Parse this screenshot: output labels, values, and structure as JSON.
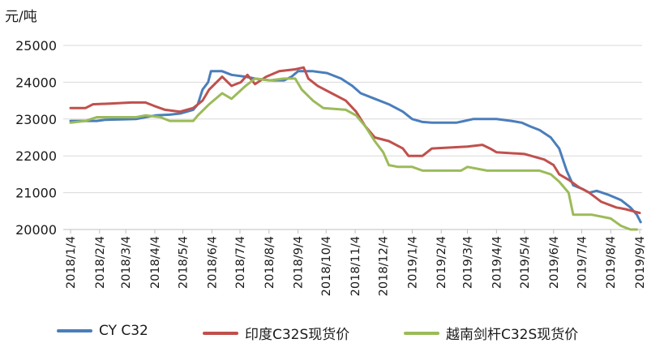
{
  "unit_label": "元/吨",
  "chart_data": {
    "type": "line",
    "ylabel": "元/吨",
    "ylim": [
      20000,
      25000
    ],
    "y_ticks": [
      "25000",
      "24000",
      "23000",
      "22000",
      "21000",
      "20000"
    ],
    "x_ticks": [
      "2018/1/4",
      "2018/2/4",
      "2018/3/4",
      "2018/4/4",
      "2018/5/4",
      "2018/6/4",
      "2018/7/4",
      "2018/8/4",
      "2018/9/4",
      "2018/10/4",
      "2018/11/4",
      "2018/12/4",
      "2019/1/4",
      "2019/2/4",
      "2019/3/4",
      "2019/4/4",
      "2019/5/4",
      "2019/6/4",
      "2019/7/4",
      "2019/8/4",
      "2019/9/4"
    ],
    "grid": "horizontal",
    "legend_position": "bottom",
    "series": [
      {
        "name": "CY C32",
        "color": "#4a7ebb",
        "points": [
          [
            "2018/1/4",
            22950
          ],
          [
            "2018/2/1",
            22950
          ],
          [
            "2018/2/10",
            22980
          ],
          [
            "2018/3/15",
            23000
          ],
          [
            "2018/3/25",
            23050
          ],
          [
            "2018/4/5",
            23100
          ],
          [
            "2018/4/20",
            23120
          ],
          [
            "2018/5/1",
            23150
          ],
          [
            "2018/5/15",
            23250
          ],
          [
            "2018/5/20",
            23400
          ],
          [
            "2018/5/25",
            23800
          ],
          [
            "2018/5/31",
            24000
          ],
          [
            "2018/6/3",
            24300
          ],
          [
            "2018/6/15",
            24300
          ],
          [
            "2018/6/25",
            24200
          ],
          [
            "2018/7/10",
            24150
          ],
          [
            "2018/7/20",
            24100
          ],
          [
            "2018/8/5",
            24050
          ],
          [
            "2018/8/20",
            24050
          ],
          [
            "2018/8/28",
            24150
          ],
          [
            "2018/9/4",
            24300
          ],
          [
            "2018/9/20",
            24300
          ],
          [
            "2018/10/5",
            24250
          ],
          [
            "2018/10/20",
            24100
          ],
          [
            "2018/11/1",
            23900
          ],
          [
            "2018/11/10",
            23700
          ],
          [
            "2018/11/25",
            23550
          ],
          [
            "2018/12/10",
            23400
          ],
          [
            "2018/12/25",
            23200
          ],
          [
            "2019/1/4",
            23000
          ],
          [
            "2019/1/15",
            22920
          ],
          [
            "2019/1/25",
            22900
          ],
          [
            "2019/2/20",
            22900
          ],
          [
            "2019/3/1",
            22950
          ],
          [
            "2019/3/10",
            23000
          ],
          [
            "2019/3/20",
            23000
          ],
          [
            "2019/4/4",
            23000
          ],
          [
            "2019/4/20",
            22950
          ],
          [
            "2019/5/1",
            22900
          ],
          [
            "2019/5/10",
            22800
          ],
          [
            "2019/5/20",
            22700
          ],
          [
            "2019/6/1",
            22500
          ],
          [
            "2019/6/10",
            22200
          ],
          [
            "2019/6/18",
            21600
          ],
          [
            "2019/6/25",
            21200
          ],
          [
            "2019/7/5",
            21100
          ],
          [
            "2019/7/12",
            21000
          ],
          [
            "2019/7/20",
            21050
          ],
          [
            "2019/8/1",
            20950
          ],
          [
            "2019/8/15",
            20800
          ],
          [
            "2019/8/25",
            20600
          ],
          [
            "2019/9/1",
            20400
          ],
          [
            "2019/9/5",
            20200
          ]
        ]
      },
      {
        "name": "印度C32S现货价",
        "color": "#c0504d",
        "points": [
          [
            "2018/1/4",
            23300
          ],
          [
            "2018/1/20",
            23300
          ],
          [
            "2018/1/28",
            23400
          ],
          [
            "2018/2/15",
            23420
          ],
          [
            "2018/3/10",
            23450
          ],
          [
            "2018/3/25",
            23450
          ],
          [
            "2018/4/4",
            23350
          ],
          [
            "2018/4/15",
            23250
          ],
          [
            "2018/5/1",
            23200
          ],
          [
            "2018/5/15",
            23300
          ],
          [
            "2018/5/25",
            23500
          ],
          [
            "2018/6/1",
            23800
          ],
          [
            "2018/6/15",
            24150
          ],
          [
            "2018/6/25",
            23900
          ],
          [
            "2018/7/5",
            24000
          ],
          [
            "2018/7/12",
            24200
          ],
          [
            "2018/7/20",
            23950
          ],
          [
            "2018/8/1",
            24150
          ],
          [
            "2018/8/15",
            24300
          ],
          [
            "2018/9/1",
            24350
          ],
          [
            "2018/9/10",
            24400
          ],
          [
            "2018/9/15",
            24100
          ],
          [
            "2018/9/25",
            23900
          ],
          [
            "2018/10/10",
            23700
          ],
          [
            "2018/10/25",
            23500
          ],
          [
            "2018/11/5",
            23200
          ],
          [
            "2018/11/15",
            22800
          ],
          [
            "2018/11/25",
            22500
          ],
          [
            "2018/12/10",
            22400
          ],
          [
            "2018/12/25",
            22200
          ],
          [
            "2018/12/31",
            22000
          ],
          [
            "2019/1/15",
            22000
          ],
          [
            "2019/1/25",
            22200
          ],
          [
            "2019/3/4",
            22250
          ],
          [
            "2019/3/20",
            22300
          ],
          [
            "2019/3/28",
            22200
          ],
          [
            "2019/4/4",
            22100
          ],
          [
            "2019/5/4",
            22050
          ],
          [
            "2019/5/25",
            21900
          ],
          [
            "2019/6/4",
            21750
          ],
          [
            "2019/6/10",
            21500
          ],
          [
            "2019/6/20",
            21350
          ],
          [
            "2019/7/1",
            21150
          ],
          [
            "2019/7/12",
            21000
          ],
          [
            "2019/7/25",
            20750
          ],
          [
            "2019/8/10",
            20600
          ],
          [
            "2019/8/20",
            20550
          ],
          [
            "2019/9/4",
            20450
          ]
        ]
      },
      {
        "name": "越南剑杆C32S现货价",
        "color": "#9bbb59",
        "points": [
          [
            "2018/1/4",
            22900
          ],
          [
            "2018/1/20",
            22950
          ],
          [
            "2018/2/1",
            23050
          ],
          [
            "2018/3/15",
            23050
          ],
          [
            "2018/3/25",
            23100
          ],
          [
            "2018/4/10",
            23050
          ],
          [
            "2018/4/20",
            22950
          ],
          [
            "2018/5/15",
            22950
          ],
          [
            "2018/5/20",
            23100
          ],
          [
            "2018/6/1",
            23400
          ],
          [
            "2018/6/15",
            23700
          ],
          [
            "2018/6/25",
            23550
          ],
          [
            "2018/7/10",
            23900
          ],
          [
            "2018/7/20",
            24100
          ],
          [
            "2018/8/5",
            24050
          ],
          [
            "2018/8/20",
            24100
          ],
          [
            "2018/9/1",
            24100
          ],
          [
            "2018/9/8",
            23800
          ],
          [
            "2018/9/20",
            23500
          ],
          [
            "2018/10/1",
            23300
          ],
          [
            "2018/10/25",
            23250
          ],
          [
            "2018/11/5",
            23100
          ],
          [
            "2018/11/15",
            22800
          ],
          [
            "2018/11/25",
            22400
          ],
          [
            "2018/12/4",
            22100
          ],
          [
            "2018/12/10",
            21750
          ],
          [
            "2018/12/20",
            21700
          ],
          [
            "2019/1/4",
            21700
          ],
          [
            "2019/1/15",
            21600
          ],
          [
            "2019/2/25",
            21600
          ],
          [
            "2019/3/4",
            21700
          ],
          [
            "2019/3/25",
            21600
          ],
          [
            "2019/5/20",
            21600
          ],
          [
            "2019/6/1",
            21500
          ],
          [
            "2019/6/10",
            21300
          ],
          [
            "2019/6/20",
            21000
          ],
          [
            "2019/6/25",
            20400
          ],
          [
            "2019/7/15",
            20400
          ],
          [
            "2019/8/4",
            20300
          ],
          [
            "2019/8/15",
            20100
          ],
          [
            "2019/8/25",
            20000
          ],
          [
            "2019/9/1",
            20000
          ]
        ]
      }
    ]
  }
}
